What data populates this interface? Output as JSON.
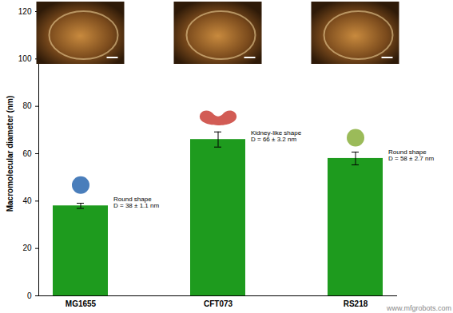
{
  "chart_data": {
    "type": "bar",
    "categories": [
      "MG1655",
      "CFT073",
      "RS218"
    ],
    "values": [
      38,
      66,
      58
    ],
    "errors": [
      1.1,
      3.2,
      2.7
    ],
    "color": "#1e9b1e",
    "ylabel": "Macromolecular diameter (nm)",
    "ylim": [
      0,
      120
    ],
    "yticks": [
      0,
      20,
      40,
      60,
      80,
      100,
      120
    ],
    "annotations": [
      "Round shape\nD = 38 ± 1.1 nm",
      "Kidney-like shape\nD = 66 ± 3.2 nm",
      "Round shape\nD = 58 ± 2.7 nm"
    ],
    "watermark": "www.mfgrobots.com"
  }
}
